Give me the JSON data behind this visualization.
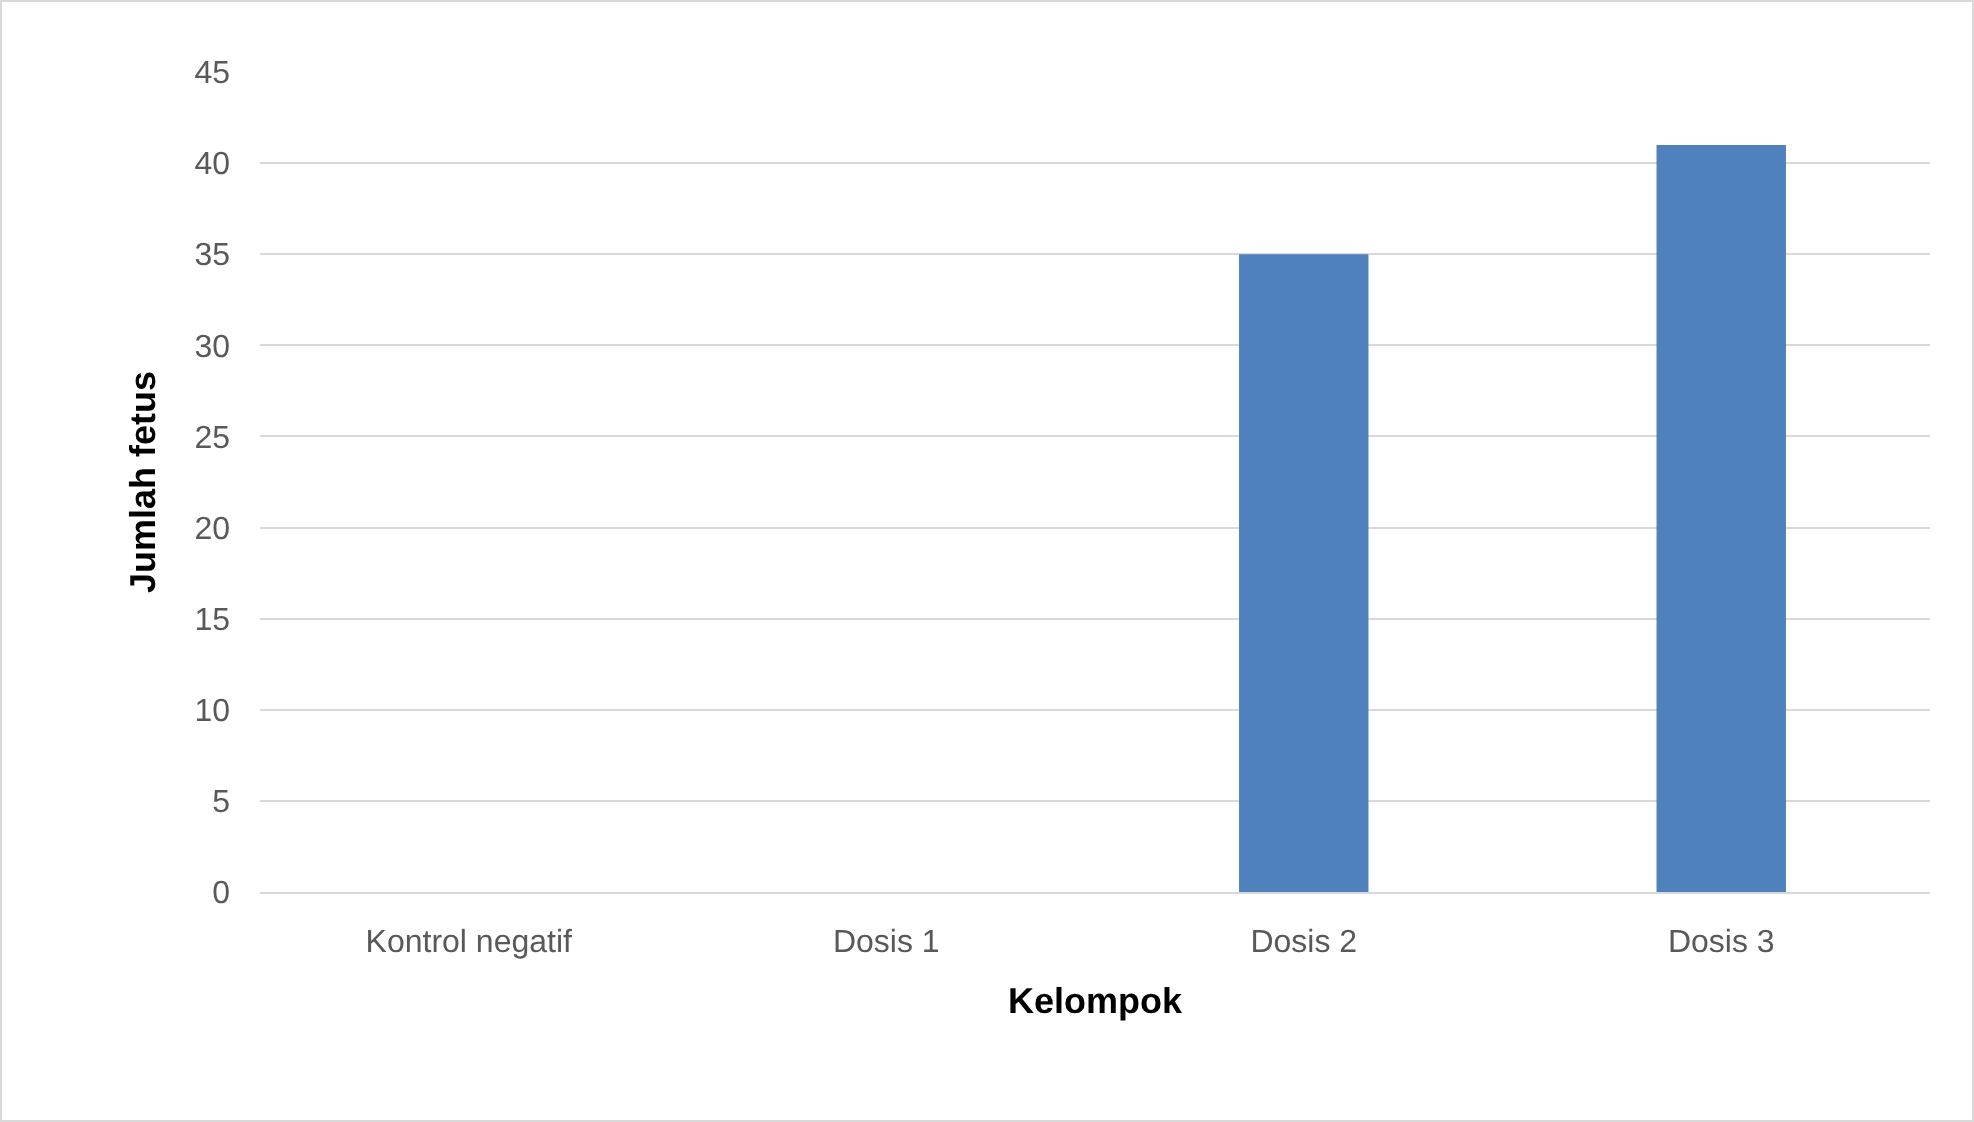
{
  "chart_data": {
    "type": "bar",
    "xlabel": "Kelompok",
    "ylabel": "Jumlah fetus",
    "categories": [
      "Kontrol negatif",
      "Dosis 1",
      "Dosis 2",
      "Dosis 3"
    ],
    "values": [
      0,
      0,
      35,
      41
    ],
    "color": "#4f81bd",
    "ylim": [
      0,
      45
    ],
    "yticks": [
      0,
      5,
      10,
      15,
      20,
      25,
      30,
      35,
      40,
      45
    ],
    "grid": "y"
  }
}
